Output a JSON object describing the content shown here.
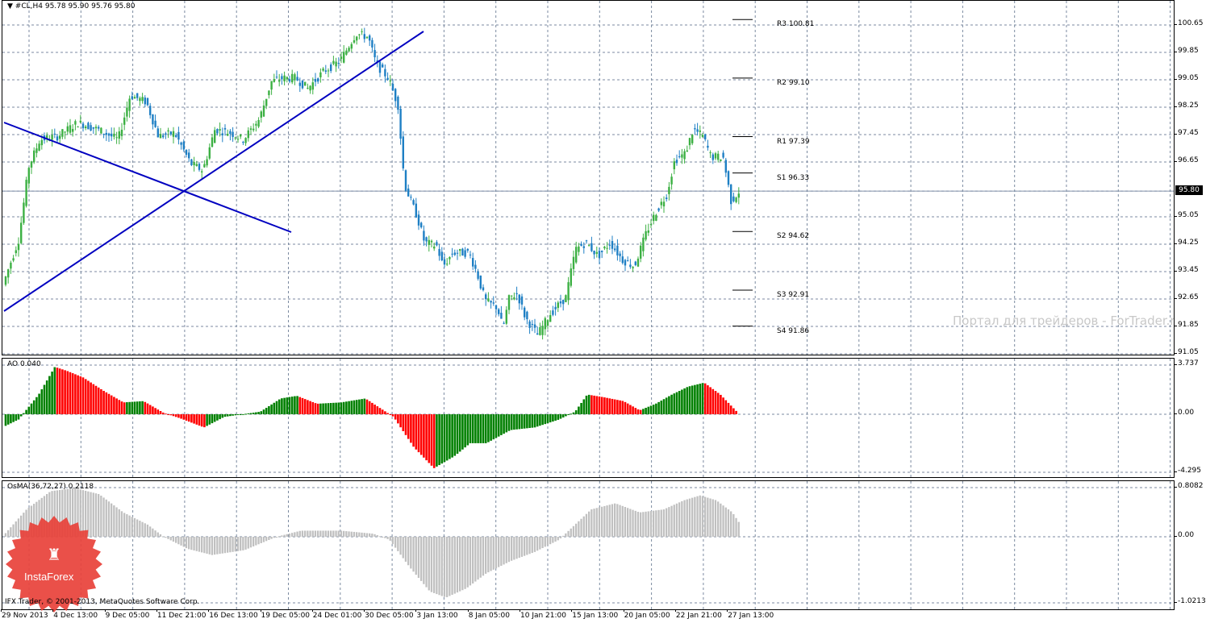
{
  "header": {
    "symbol_caret": "▼",
    "symbol_text": "#CL,H4  95.78 95.90 95.76 95.80"
  },
  "current_price": "95.80",
  "price_axis": {
    "ticks": [
      "100.65",
      "99.85",
      "99.05",
      "98.25",
      "97.45",
      "96.65",
      "95.80",
      "95.05",
      "94.25",
      "93.45",
      "92.65",
      "91.85",
      "91.05"
    ],
    "values": [
      100.65,
      99.85,
      99.05,
      98.25,
      97.45,
      96.65,
      95.8,
      95.05,
      94.25,
      93.45,
      92.65,
      91.85,
      91.05
    ]
  },
  "pivots": [
    {
      "label": "R3 100.81",
      "value": 100.81
    },
    {
      "label": "R2 99.10",
      "value": 99.1
    },
    {
      "label": "R1 97.39",
      "value": 97.39
    },
    {
      "label": "S1 96.33",
      "value": 96.33
    },
    {
      "label": "S2 94.62",
      "value": 94.62
    },
    {
      "label": "S3 92.91",
      "value": 92.91
    },
    {
      "label": "S4 91.86",
      "value": 91.86
    }
  ],
  "ao": {
    "label": "AO 0.040",
    "ticks": [
      "3.737",
      "0.00",
      "-4.295"
    ]
  },
  "osma": {
    "label": "OsMA(36,72,27) 0.2118",
    "ticks": [
      "0.8082",
      "0.00",
      "-1.0213"
    ]
  },
  "time_axis": [
    "29 Nov 2013",
    "4 Dec 13:00",
    "9 Dec 05:00",
    "11 Dec 21:00",
    "16 Dec 13:00",
    "19 Dec 05:00",
    "24 Dec 01:00",
    "30 Dec 05:00",
    "3 Jan 13:00",
    "8 Jan 05:00",
    "10 Jan 21:00",
    "15 Jan 13:00",
    "20 Jan 05:00",
    "22 Jan 21:00",
    "27 Jan 13:00"
  ],
  "watermark": "Портал для трейдеров - ForTrader.ru",
  "copyright": "IFX Trader, © 2001-2013, MetaQuotes Software Corp.",
  "logo_text": "InstaForex",
  "colors": {
    "up": "#3cb043",
    "down": "#1e7fc4",
    "ao_up": "#008000",
    "ao_down": "#ff0000",
    "osma": "#c0c0c0",
    "trend": "#0000c0",
    "grid": "#7b8aa0"
  }
}
